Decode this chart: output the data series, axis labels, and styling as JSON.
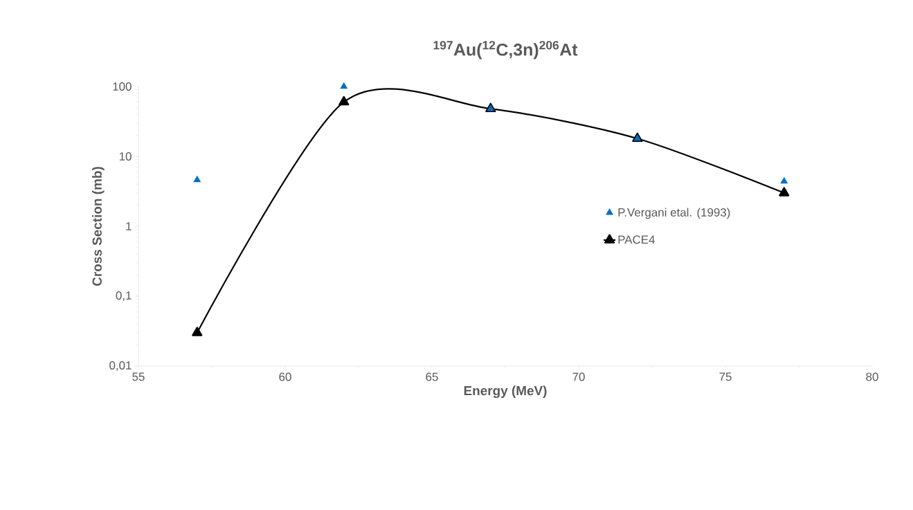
{
  "chart_data": {
    "type": "scatter",
    "title": "$^{197}$Au($^{12}$C,3n)$^{206}$At",
    "xlabel": "Energy (MeV)",
    "ylabel": "Cross Section (mb)",
    "log": "y",
    "marker": "triangle",
    "legend": "right",
    "grid": false,
    "xlim": [
      55,
      80
    ],
    "xticks": [
      55,
      60,
      65,
      70,
      75,
      80
    ],
    "ylim": [
      0.01,
      100
    ],
    "yticks": [
      {
        "value": 0.01,
        "label": "0,01"
      },
      {
        "value": 0.1,
        "label": "0,1"
      },
      1,
      10,
      100
    ],
    "x": [
      57,
      62,
      67,
      72,
      77
    ],
    "series": [
      {
        "name": "P.Vergani etal. (1993)",
        "color": "#0070c0",
        "values": [
          4.6,
          100,
          48,
          18,
          4.4
        ]
      },
      {
        "name": "PACE4",
        "type": "line",
        "color": "#000000",
        "line_style": "solid",
        "values": [
          0.03,
          60,
          48,
          18,
          3.0
        ]
      }
    ]
  }
}
